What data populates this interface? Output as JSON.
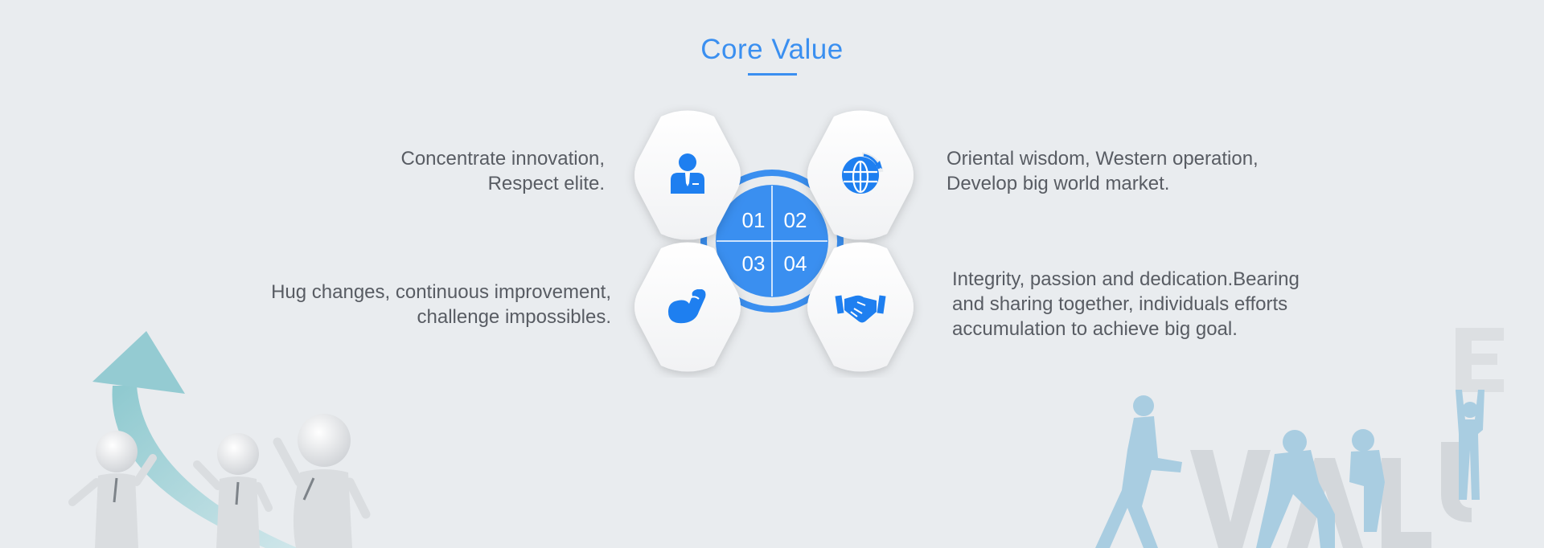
{
  "title": "Core Value",
  "values": [
    {
      "number": "01",
      "icon": "business-person-icon",
      "lines": [
        "Concentrate innovation,",
        "Respect elite."
      ]
    },
    {
      "number": "02",
      "icon": "globe-refresh-icon",
      "lines": [
        "Oriental wisdom, Western operation,",
        "Develop big world market."
      ]
    },
    {
      "number": "03",
      "icon": "flexed-arm-icon",
      "lines": [
        "Hug changes, continuous improvement,",
        "challenge impossibles."
      ]
    },
    {
      "number": "04",
      "icon": "handshake-icon",
      "lines": [
        "Integrity, passion and dedication.Bearing",
        "and sharing together, individuals efforts",
        "accumulation to achieve big goal."
      ]
    }
  ],
  "colors": {
    "accent": "#3a8ff0",
    "background": "#e9ecef",
    "text": "#585c63"
  }
}
